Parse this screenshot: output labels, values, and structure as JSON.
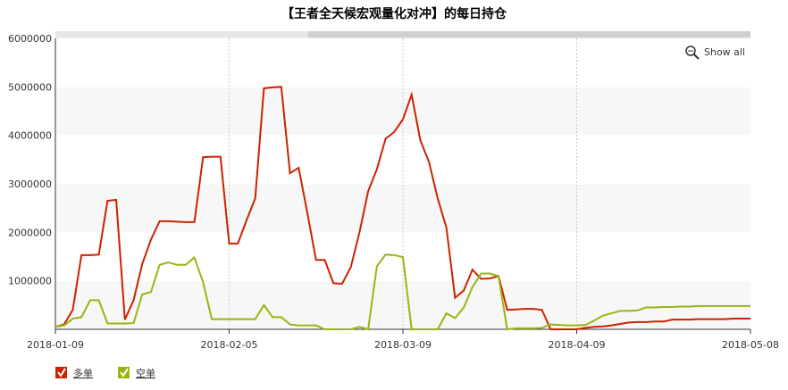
{
  "chart_data": {
    "type": "line",
    "title": "【王者全天候宏观量化对冲】的每日持仓",
    "button": "Show all",
    "categories": [
      "2018-01-09",
      null,
      null,
      null,
      null,
      null,
      null,
      null,
      null,
      null,
      null,
      null,
      null,
      null,
      null,
      null,
      null,
      null,
      null,
      null,
      "2018-02-05",
      null,
      null,
      null,
      null,
      null,
      null,
      null,
      null,
      null,
      null,
      null,
      null,
      null,
      null,
      null,
      null,
      null,
      null,
      null,
      "2018-03-09",
      null,
      null,
      null,
      null,
      null,
      null,
      null,
      null,
      null,
      null,
      null,
      null,
      null,
      null,
      null,
      null,
      null,
      null,
      null,
      "2018-04-09",
      null,
      null,
      null,
      null,
      null,
      null,
      null,
      null,
      null,
      null,
      null,
      null,
      null,
      null,
      null,
      null,
      null,
      null,
      null,
      "2018-05-08"
    ],
    "series": [
      {
        "name": "多单",
        "color": "#cc2200",
        "values": [
          50000,
          100000,
          400000,
          1530000,
          1530000,
          1540000,
          2650000,
          2670000,
          200000,
          600000,
          1350000,
          1850000,
          2230000,
          2230000,
          2220000,
          2210000,
          2210000,
          3550000,
          3560000,
          3560000,
          1770000,
          1770000,
          2250000,
          2700000,
          4970000,
          4990000,
          5000000,
          3220000,
          3330000,
          2400000,
          1430000,
          1430000,
          950000,
          940000,
          1280000,
          2000000,
          2850000,
          3300000,
          3930000,
          4070000,
          4330000,
          4840000,
          3900000,
          3450000,
          2700000,
          2100000,
          650000,
          800000,
          1230000,
          1040000,
          1050000,
          1100000,
          400000,
          410000,
          420000,
          420000,
          400000,
          0,
          0,
          0,
          0,
          30000,
          50000,
          60000,
          80000,
          110000,
          140000,
          150000,
          150000,
          160000,
          160000,
          200000,
          200000,
          200000,
          210000,
          210000,
          210000,
          210000,
          220000,
          220000,
          220000
        ]
      },
      {
        "name": "空单",
        "color": "#99b511",
        "values": [
          50000,
          80000,
          220000,
          250000,
          600000,
          600000,
          120000,
          120000,
          120000,
          130000,
          720000,
          770000,
          1330000,
          1380000,
          1330000,
          1330000,
          1480000,
          970000,
          210000,
          210000,
          210000,
          210000,
          210000,
          210000,
          500000,
          250000,
          250000,
          100000,
          80000,
          80000,
          80000,
          0,
          0,
          0,
          0,
          50000,
          0,
          1300000,
          1540000,
          1530000,
          1490000,
          0,
          0,
          0,
          0,
          330000,
          230000,
          450000,
          870000,
          1150000,
          1150000,
          1100000,
          0,
          20000,
          20000,
          20000,
          30000,
          100000,
          90000,
          80000,
          80000,
          90000,
          180000,
          280000,
          330000,
          380000,
          380000,
          390000,
          450000,
          450000,
          460000,
          460000,
          470000,
          470000,
          480000,
          480000,
          480000,
          480000,
          480000,
          480000,
          480000
        ]
      }
    ],
    "ylim": [
      0,
      6000000
    ],
    "yticks": [
      1000000,
      2000000,
      3000000,
      4000000,
      5000000,
      6000000
    ],
    "grid": true
  }
}
